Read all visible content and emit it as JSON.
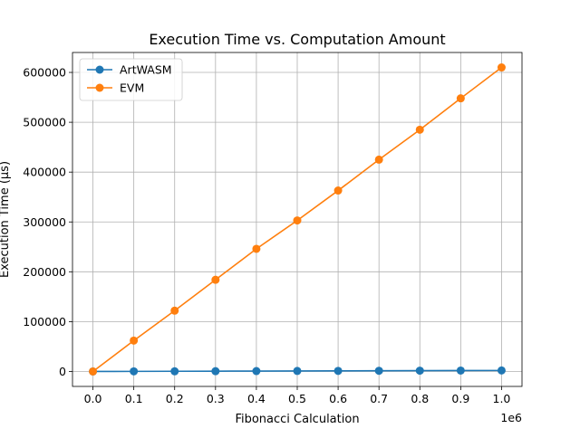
{
  "chart_data": {
    "type": "line",
    "title": "Execution Time vs. Computation Amount",
    "xlabel": "Fibonacci Calculation",
    "ylabel": "Execution Time (µs)",
    "x_offset_label": "1e6",
    "xlim": [
      -0.05,
      1.05
    ],
    "ylim": [
      -30000,
      640000
    ],
    "x_scale_factor": 1000000,
    "x": [
      0,
      100000,
      200000,
      300000,
      400000,
      500000,
      600000,
      700000,
      800000,
      900000,
      1000000
    ],
    "x_ticks": [
      0.0,
      0.1,
      0.2,
      0.3,
      0.4,
      0.5,
      0.6,
      0.7,
      0.8,
      0.9,
      1.0
    ],
    "x_tick_labels": [
      "0.0",
      "0.1",
      "0.2",
      "0.3",
      "0.4",
      "0.5",
      "0.6",
      "0.7",
      "0.8",
      "0.9",
      "1.0"
    ],
    "y_ticks": [
      0,
      100000,
      200000,
      300000,
      400000,
      500000,
      600000
    ],
    "y_tick_labels": [
      "0",
      "100000",
      "200000",
      "300000",
      "400000",
      "500000",
      "600000"
    ],
    "grid": true,
    "legend_position": "top-left",
    "series": [
      {
        "name": "ArtWASM",
        "color": "#1f77b4",
        "marker": "circle",
        "values": [
          0,
          200,
          400,
          600,
          800,
          1000,
          1200,
          1400,
          1600,
          1800,
          2000
        ]
      },
      {
        "name": "EVM",
        "color": "#ff7f0e",
        "marker": "circle",
        "values": [
          0,
          62000,
          122000,
          184000,
          246000,
          303000,
          363000,
          425000,
          485000,
          548000,
          610000
        ]
      }
    ]
  }
}
